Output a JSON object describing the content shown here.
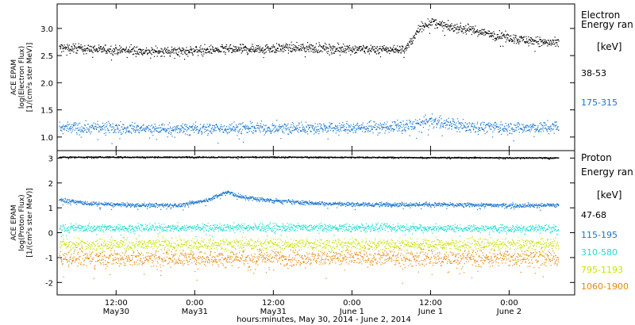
{
  "chart_data": {
    "type": "scatter",
    "xlabel": "hours:minutes, May 30, 2014 - June  2, 2014",
    "x_unit": "hours since 00:00 May 30, 2014",
    "xlim": [
      3.0,
      82.0
    ],
    "x_ticks": [
      {
        "hour": 12,
        "line1": "12:00",
        "line2": "May30"
      },
      {
        "hour": 24,
        "line1": "0:00",
        "line2": "May31"
      },
      {
        "hour": 36,
        "line1": "12:00",
        "line2": "May31"
      },
      {
        "hour": 48,
        "line1": "0:00",
        "line2": "June 1"
      },
      {
        "hour": 60,
        "line1": "12:00",
        "line2": "June 1"
      },
      {
        "hour": 72,
        "line1": "0:00",
        "line2": "June 2"
      }
    ],
    "panels": [
      {
        "id": "electron",
        "ylabel_lines": [
          "ACE EPAM",
          "log(Electron Flux)",
          "[1/(cm²s ster MeV)]"
        ],
        "ylim": [
          0.75,
          3.45
        ],
        "y_ticks": [
          "1.0",
          "1.5",
          "2.0",
          "2.5",
          "3.0"
        ],
        "y_tick_values": [
          1.0,
          1.5,
          2.0,
          2.5,
          3.0
        ],
        "legend_title": [
          "Electron",
          "Energy ran",
          "[keV]"
        ],
        "series": [
          {
            "name": "38-53",
            "color": "#000000",
            "x_end": 79.5,
            "points": [
              [
                3,
                2.65
              ],
              [
                10,
                2.62
              ],
              [
                18,
                2.58
              ],
              [
                24,
                2.6
              ],
              [
                30,
                2.62
              ],
              [
                40,
                2.65
              ],
              [
                48,
                2.63
              ],
              [
                52,
                2.62
              ],
              [
                56,
                2.62
              ],
              [
                57.5,
                2.85
              ],
              [
                58.5,
                3.05
              ],
              [
                60,
                3.12
              ],
              [
                62,
                3.05
              ],
              [
                66,
                2.98
              ],
              [
                70,
                2.88
              ],
              [
                74,
                2.8
              ],
              [
                79.5,
                2.72
              ]
            ],
            "noise": 0.07
          },
          {
            "name": "175-315",
            "color": "#1874cd",
            "x_end": 79.5,
            "points": [
              [
                3,
                1.18
              ],
              [
                10,
                1.17
              ],
              [
                20,
                1.15
              ],
              [
                30,
                1.17
              ],
              [
                40,
                1.18
              ],
              [
                48,
                1.18
              ],
              [
                56,
                1.2
              ],
              [
                60,
                1.3
              ],
              [
                66,
                1.2
              ],
              [
                72,
                1.18
              ],
              [
                79.5,
                1.18
              ]
            ],
            "noise": 0.09
          }
        ]
      },
      {
        "id": "proton",
        "ylabel_lines": [
          "ACE EPAM",
          "log(Proton Flux)",
          "[1/(cm²s ster MeV)]"
        ],
        "ylim": [
          -2.5,
          3.3
        ],
        "y_ticks": [
          "-2",
          "-1",
          "0",
          "1",
          "2",
          "3"
        ],
        "y_tick_values": [
          -2,
          -1,
          0,
          1,
          2,
          3
        ],
        "legend_title": [
          "Proton",
          "Energy ran",
          "[keV]"
        ],
        "series": [
          {
            "name": "47-68",
            "color": "#000000",
            "x_end": 79.5,
            "points": [
              [
                3,
                3.05
              ],
              [
                40,
                3.05
              ],
              [
                79.5,
                3.02
              ]
            ],
            "noise": 0.02
          },
          {
            "name": "115-195",
            "color": "#1874cd",
            "x_end": 79.5,
            "points": [
              [
                3,
                1.35
              ],
              [
                8,
                1.18
              ],
              [
                14,
                1.12
              ],
              [
                22,
                1.12
              ],
              [
                26,
                1.35
              ],
              [
                29,
                1.65
              ],
              [
                31,
                1.45
              ],
              [
                36,
                1.3
              ],
              [
                42,
                1.2
              ],
              [
                50,
                1.15
              ],
              [
                60,
                1.15
              ],
              [
                70,
                1.12
              ],
              [
                79.5,
                1.12
              ]
            ],
            "noise": 0.07
          },
          {
            "name": "310-580",
            "color": "#1ee0d0",
            "x_end": 79.5,
            "points": [
              [
                3,
                0.2
              ],
              [
                40,
                0.22
              ],
              [
                79.5,
                0.18
              ]
            ],
            "noise": 0.13
          },
          {
            "name": "795-1193",
            "color": "#c8e600",
            "x_end": 79.5,
            "points": [
              [
                3,
                -0.45
              ],
              [
                40,
                -0.45
              ],
              [
                79.5,
                -0.45
              ]
            ],
            "noise": 0.2
          },
          {
            "name": "1060-1900",
            "color": "#e8870a",
            "x_end": 79.5,
            "points": [
              [
                3,
                -1.0
              ],
              [
                40,
                -1.0
              ],
              [
                79.5,
                -1.0
              ]
            ],
            "noise": 0.28
          }
        ]
      }
    ]
  }
}
